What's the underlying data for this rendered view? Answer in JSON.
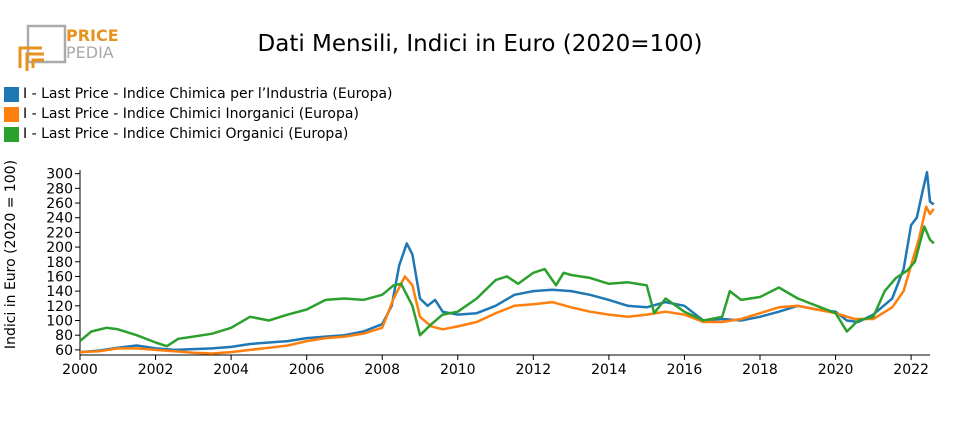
{
  "logo": {
    "word1": "PRICE",
    "word2": "PEDIA"
  },
  "colors": {
    "logo_orange": "#e8921e",
    "logo_gray": "#aaaaaa"
  },
  "chart_data": {
    "type": "line",
    "title": "Dati Mensili, Indici in Euro (2020=100)",
    "xlabel": "",
    "ylabel": "Indici in Euro (2020 = 100)",
    "xlim": [
      2000.0,
      2022.5
    ],
    "ylim": [
      53,
      305
    ],
    "xticks": [
      2000,
      2002,
      2004,
      2006,
      2008,
      2010,
      2012,
      2014,
      2016,
      2018,
      2020,
      2022
    ],
    "yticks": [
      60,
      80,
      100,
      120,
      140,
      160,
      180,
      200,
      220,
      240,
      260,
      280,
      300
    ],
    "grid": false,
    "legend_position": "top-left",
    "series": [
      {
        "name": "I - Last Price - Indice Chimica per l’Industria (Europa)",
        "color": "#1f77b4",
        "points": [
          [
            2000.0,
            57
          ],
          [
            2000.5,
            59
          ],
          [
            2001.0,
            63
          ],
          [
            2001.5,
            66
          ],
          [
            2002.0,
            62
          ],
          [
            2002.5,
            60
          ],
          [
            2003.0,
            61
          ],
          [
            2003.5,
            62
          ],
          [
            2004.0,
            64
          ],
          [
            2004.5,
            68
          ],
          [
            2005.0,
            70
          ],
          [
            2005.5,
            72
          ],
          [
            2006.0,
            76
          ],
          [
            2006.5,
            78
          ],
          [
            2007.0,
            80
          ],
          [
            2007.5,
            85
          ],
          [
            2008.0,
            95
          ],
          [
            2008.25,
            120
          ],
          [
            2008.45,
            175
          ],
          [
            2008.65,
            205
          ],
          [
            2008.8,
            190
          ],
          [
            2009.0,
            130
          ],
          [
            2009.2,
            120
          ],
          [
            2009.4,
            128
          ],
          [
            2009.6,
            112
          ],
          [
            2010.0,
            108
          ],
          [
            2010.5,
            110
          ],
          [
            2011.0,
            120
          ],
          [
            2011.5,
            135
          ],
          [
            2012.0,
            140
          ],
          [
            2012.5,
            142
          ],
          [
            2013.0,
            140
          ],
          [
            2013.5,
            135
          ],
          [
            2014.0,
            128
          ],
          [
            2014.5,
            120
          ],
          [
            2015.0,
            118
          ],
          [
            2015.5,
            125
          ],
          [
            2016.0,
            120
          ],
          [
            2016.5,
            100
          ],
          [
            2017.0,
            102
          ],
          [
            2017.5,
            100
          ],
          [
            2018.0,
            105
          ],
          [
            2018.5,
            112
          ],
          [
            2019.0,
            120
          ],
          [
            2019.5,
            115
          ],
          [
            2020.0,
            112
          ],
          [
            2020.3,
            100
          ],
          [
            2020.6,
            98
          ],
          [
            2021.0,
            108
          ],
          [
            2021.5,
            130
          ],
          [
            2021.8,
            170
          ],
          [
            2022.0,
            230
          ],
          [
            2022.15,
            240
          ],
          [
            2022.3,
            275
          ],
          [
            2022.42,
            302
          ],
          [
            2022.5,
            262
          ],
          [
            2022.6,
            258
          ]
        ]
      },
      {
        "name": "I - Last Price - Indice Chimici Inorganici (Europa)",
        "color": "#ff7f0e",
        "points": [
          [
            2000.0,
            57
          ],
          [
            2000.5,
            58
          ],
          [
            2001.0,
            62
          ],
          [
            2001.5,
            62
          ],
          [
            2002.0,
            60
          ],
          [
            2002.5,
            58
          ],
          [
            2003.0,
            56
          ],
          [
            2003.5,
            55
          ],
          [
            2004.0,
            57
          ],
          [
            2004.5,
            60
          ],
          [
            2005.0,
            63
          ],
          [
            2005.5,
            66
          ],
          [
            2006.0,
            72
          ],
          [
            2006.5,
            76
          ],
          [
            2007.0,
            78
          ],
          [
            2007.5,
            82
          ],
          [
            2008.0,
            90
          ],
          [
            2008.3,
            130
          ],
          [
            2008.6,
            160
          ],
          [
            2008.8,
            148
          ],
          [
            2009.0,
            105
          ],
          [
            2009.3,
            92
          ],
          [
            2009.6,
            88
          ],
          [
            2010.0,
            92
          ],
          [
            2010.5,
            98
          ],
          [
            2011.0,
            110
          ],
          [
            2011.5,
            120
          ],
          [
            2012.0,
            122
          ],
          [
            2012.5,
            125
          ],
          [
            2013.0,
            118
          ],
          [
            2013.5,
            112
          ],
          [
            2014.0,
            108
          ],
          [
            2014.5,
            105
          ],
          [
            2015.0,
            108
          ],
          [
            2015.5,
            112
          ],
          [
            2016.0,
            108
          ],
          [
            2016.5,
            98
          ],
          [
            2017.0,
            98
          ],
          [
            2017.5,
            102
          ],
          [
            2018.0,
            110
          ],
          [
            2018.5,
            118
          ],
          [
            2019.0,
            120
          ],
          [
            2019.5,
            115
          ],
          [
            2020.0,
            110
          ],
          [
            2020.5,
            102
          ],
          [
            2021.0,
            102
          ],
          [
            2021.5,
            118
          ],
          [
            2021.8,
            140
          ],
          [
            2022.0,
            175
          ],
          [
            2022.2,
            210
          ],
          [
            2022.4,
            255
          ],
          [
            2022.5,
            245
          ],
          [
            2022.6,
            252
          ]
        ]
      },
      {
        "name": "I - Last Price - Indice Chimici Organici (Europa)",
        "color": "#2ca02c",
        "points": [
          [
            2000.0,
            72
          ],
          [
            2000.3,
            85
          ],
          [
            2000.7,
            90
          ],
          [
            2001.0,
            88
          ],
          [
            2001.5,
            80
          ],
          [
            2002.0,
            70
          ],
          [
            2002.3,
            65
          ],
          [
            2002.6,
            75
          ],
          [
            2003.0,
            78
          ],
          [
            2003.5,
            82
          ],
          [
            2004.0,
            90
          ],
          [
            2004.5,
            105
          ],
          [
            2005.0,
            100
          ],
          [
            2005.5,
            108
          ],
          [
            2006.0,
            115
          ],
          [
            2006.5,
            128
          ],
          [
            2007.0,
            130
          ],
          [
            2007.5,
            128
          ],
          [
            2008.0,
            135
          ],
          [
            2008.3,
            148
          ],
          [
            2008.5,
            150
          ],
          [
            2008.8,
            120
          ],
          [
            2009.0,
            80
          ],
          [
            2009.3,
            95
          ],
          [
            2009.6,
            108
          ],
          [
            2010.0,
            112
          ],
          [
            2010.5,
            130
          ],
          [
            2011.0,
            155
          ],
          [
            2011.3,
            160
          ],
          [
            2011.6,
            150
          ],
          [
            2012.0,
            165
          ],
          [
            2012.3,
            170
          ],
          [
            2012.6,
            148
          ],
          [
            2012.8,
            165
          ],
          [
            2013.0,
            162
          ],
          [
            2013.5,
            158
          ],
          [
            2014.0,
            150
          ],
          [
            2014.5,
            152
          ],
          [
            2015.0,
            148
          ],
          [
            2015.2,
            110
          ],
          [
            2015.5,
            130
          ],
          [
            2016.0,
            112
          ],
          [
            2016.5,
            100
          ],
          [
            2017.0,
            105
          ],
          [
            2017.2,
            140
          ],
          [
            2017.5,
            128
          ],
          [
            2018.0,
            132
          ],
          [
            2018.5,
            145
          ],
          [
            2019.0,
            130
          ],
          [
            2019.5,
            120
          ],
          [
            2020.0,
            110
          ],
          [
            2020.3,
            85
          ],
          [
            2020.6,
            100
          ],
          [
            2021.0,
            105
          ],
          [
            2021.3,
            140
          ],
          [
            2021.6,
            158
          ],
          [
            2021.9,
            168
          ],
          [
            2022.1,
            180
          ],
          [
            2022.35,
            228
          ],
          [
            2022.5,
            210
          ],
          [
            2022.6,
            205
          ]
        ]
      }
    ]
  }
}
